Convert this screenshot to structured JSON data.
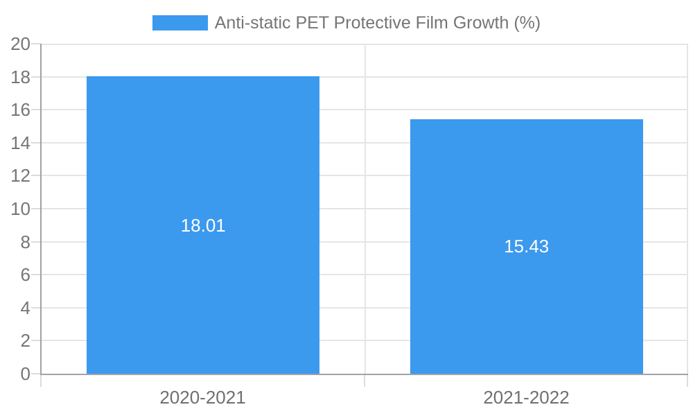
{
  "legend": {
    "label": "Anti-static PET Protective Film Growth (%)"
  },
  "colors": {
    "bar": "#3B99EE",
    "bar_label": "#FFFFFF",
    "legend_text": "#757575",
    "axis_line": "#A2A2A2",
    "grid_line": "#E5E5E5",
    "tick_line": "#DCDCDC",
    "y_label_text": "#757575",
    "x_label_text": "#6F6F6F",
    "background": "#FFFFFF"
  },
  "chart_data": {
    "type": "bar",
    "title": "Anti-static PET Protective Film Growth (%)",
    "categories": [
      "2020-2021",
      "2021-2022"
    ],
    "values": [
      18.01,
      15.43
    ],
    "value_labels": [
      "18.01",
      "15.43"
    ],
    "series": [
      {
        "name": "Anti-static PET Protective Film Growth (%)",
        "values": [
          18.01,
          15.43
        ]
      }
    ],
    "xlabel": "",
    "ylabel": "",
    "ylim": [
      0,
      20
    ],
    "ytick_step": 2,
    "yticks": [
      0,
      2,
      4,
      6,
      8,
      10,
      12,
      14,
      16,
      18,
      20
    ],
    "grid": true,
    "legend_position": "top",
    "value_label_position": "center-inside-bar"
  }
}
